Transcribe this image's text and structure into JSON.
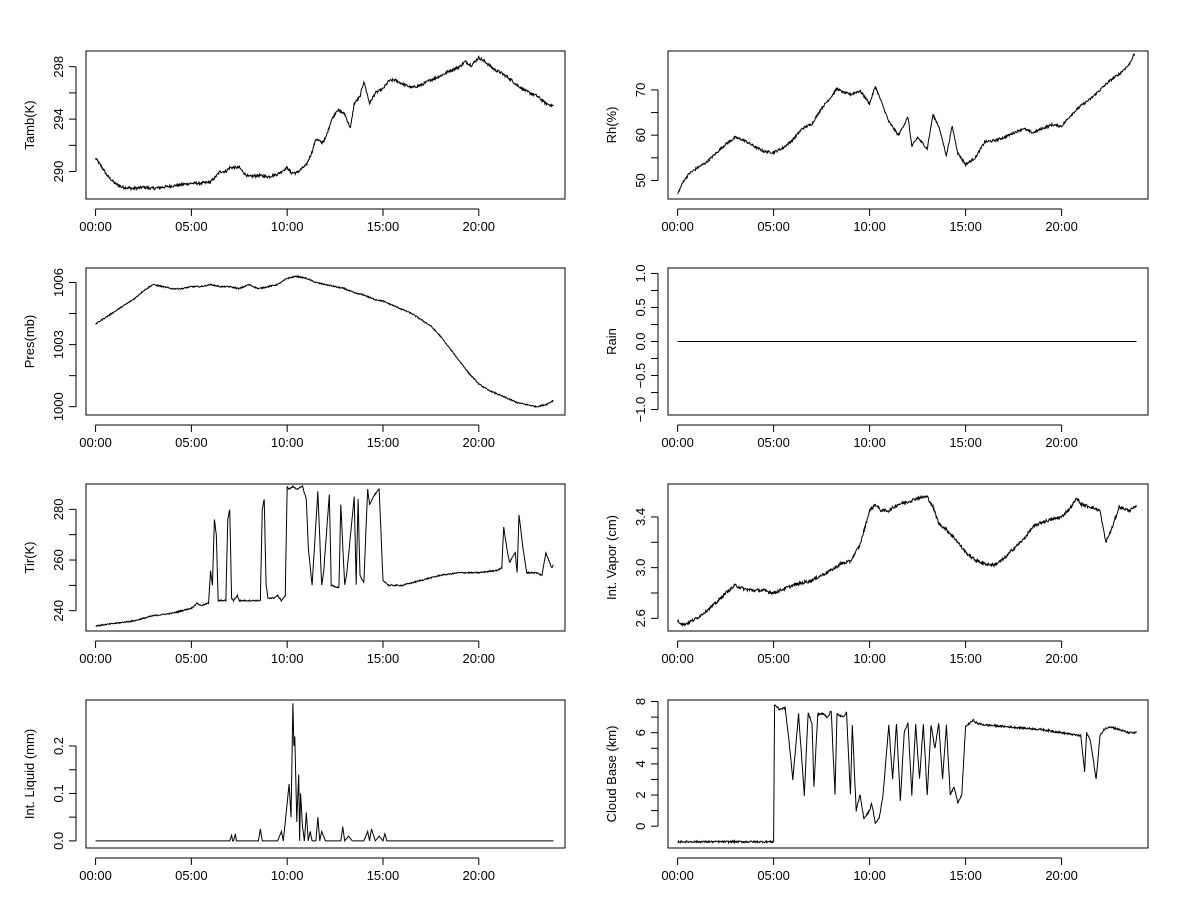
{
  "figure": {
    "background": "#ffffff",
    "line_color": "#000000",
    "x_tick_labels": [
      "00:00",
      "05:00",
      "10:00",
      "15:00",
      "20:00"
    ]
  },
  "chart_data": [
    {
      "type": "line",
      "ylabel": "Tamb(K)",
      "xlabel": "",
      "xlim": [
        -0.5,
        24.5
      ],
      "ylim": [
        287.9,
        299.2
      ],
      "yticks": [
        290,
        294,
        298
      ],
      "grid": false,
      "x": [
        0.0,
        0.3,
        0.6,
        1.0,
        1.4,
        2.0,
        2.5,
        3.0,
        3.5,
        4.0,
        4.5,
        5.0,
        5.5,
        6.0,
        6.2,
        6.5,
        6.8,
        7.0,
        7.5,
        7.8,
        8.0,
        8.5,
        9.0,
        9.5,
        10.0,
        10.2,
        10.5,
        11.0,
        11.3,
        11.5,
        11.8,
        12.0,
        12.3,
        12.6,
        13.0,
        13.3,
        13.5,
        13.8,
        14.0,
        14.3,
        14.6,
        15.0,
        15.3,
        15.6,
        16.0,
        16.5,
        17.0,
        17.5,
        18.0,
        18.5,
        19.0,
        19.3,
        19.6,
        20.0,
        20.4,
        20.8,
        21.2,
        21.6,
        22.0,
        22.5,
        23.0,
        23.5,
        23.9
      ],
      "y": [
        291.0,
        290.4,
        289.7,
        289.1,
        288.8,
        288.7,
        288.8,
        288.7,
        288.8,
        288.9,
        289.0,
        289.1,
        289.1,
        289.2,
        289.5,
        290.0,
        290.0,
        290.3,
        290.3,
        289.8,
        289.6,
        289.7,
        289.6,
        289.8,
        290.3,
        289.9,
        289.9,
        290.5,
        291.5,
        292.5,
        292.2,
        292.5,
        293.9,
        294.7,
        294.4,
        293.3,
        295.2,
        295.7,
        296.9,
        295.2,
        296.0,
        296.3,
        296.9,
        297.0,
        296.7,
        296.4,
        296.6,
        297.0,
        297.3,
        297.7,
        298.0,
        298.4,
        298.1,
        298.7,
        298.3,
        297.8,
        297.5,
        297.1,
        296.6,
        296.1,
        295.8,
        295.2,
        295.0
      ],
      "noise": 0.22
    },
    {
      "type": "line",
      "ylabel": "Rh(%)",
      "xlabel": "",
      "xlim": [
        -0.5,
        24.5
      ],
      "ylim": [
        45.9,
        78.6
      ],
      "yticks": [
        50,
        60,
        70
      ],
      "grid": false,
      "x": [
        0.0,
        0.3,
        0.6,
        1.0,
        1.5,
        2.0,
        2.5,
        3.0,
        3.5,
        4.0,
        4.5,
        5.0,
        5.5,
        6.0,
        6.5,
        7.0,
        7.5,
        8.0,
        8.3,
        8.6,
        9.0,
        9.5,
        10.0,
        10.3,
        10.6,
        11.0,
        11.5,
        12.0,
        12.2,
        12.5,
        13.0,
        13.3,
        13.6,
        14.0,
        14.3,
        14.6,
        15.0,
        15.5,
        16.0,
        16.5,
        17.0,
        17.5,
        18.0,
        18.5,
        19.0,
        19.5,
        20.0,
        20.5,
        21.0,
        21.5,
        22.0,
        22.5,
        23.0,
        23.5,
        23.8
      ],
      "y": [
        47.0,
        49.8,
        51.5,
        52.7,
        54.0,
        56.0,
        58.0,
        59.5,
        58.8,
        57.5,
        56.4,
        56.2,
        57.2,
        59.0,
        61.5,
        62.5,
        66.0,
        68.5,
        70.3,
        69.5,
        69.0,
        69.8,
        67.0,
        70.8,
        67.5,
        63.0,
        60.0,
        64.0,
        57.5,
        59.5,
        57.0,
        64.5,
        62.0,
        55.5,
        62.0,
        56.0,
        53.5,
        55.0,
        58.5,
        58.8,
        59.5,
        60.5,
        61.5,
        60.5,
        61.5,
        62.3,
        62.0,
        64.5,
        66.5,
        68.0,
        70.0,
        72.0,
        73.5,
        75.5,
        78.0
      ],
      "noise": 0.55
    },
    {
      "type": "line",
      "ylabel": "Pres(mb)",
      "xlabel": "",
      "xlim": [
        -0.5,
        24.5
      ],
      "ylim": [
        999.6,
        1006.7
      ],
      "yticks": [
        1000,
        1003,
        1006
      ],
      "grid": false,
      "x": [
        0.0,
        0.5,
        1.0,
        1.5,
        2.0,
        2.5,
        3.0,
        3.5,
        4.0,
        4.5,
        5.0,
        5.5,
        6.0,
        6.5,
        7.0,
        7.5,
        8.0,
        8.5,
        9.0,
        9.5,
        10.0,
        10.5,
        11.0,
        11.5,
        12.0,
        12.5,
        13.0,
        13.5,
        14.0,
        14.5,
        15.0,
        15.5,
        16.0,
        16.5,
        17.0,
        17.5,
        18.0,
        18.5,
        19.0,
        19.5,
        20.0,
        20.5,
        21.0,
        21.5,
        22.0,
        22.5,
        23.0,
        23.5,
        23.9
      ],
      "y": [
        1004.0,
        1004.3,
        1004.6,
        1004.9,
        1005.2,
        1005.6,
        1005.9,
        1005.8,
        1005.7,
        1005.7,
        1005.8,
        1005.8,
        1005.9,
        1005.8,
        1005.8,
        1005.7,
        1005.9,
        1005.7,
        1005.8,
        1005.9,
        1006.2,
        1006.3,
        1006.2,
        1006.0,
        1005.9,
        1005.8,
        1005.7,
        1005.5,
        1005.4,
        1005.2,
        1005.1,
        1004.9,
        1004.7,
        1004.5,
        1004.2,
        1003.9,
        1003.4,
        1002.8,
        1002.2,
        1001.6,
        1001.1,
        1000.8,
        1000.6,
        1000.4,
        1000.2,
        1000.1,
        1000.0,
        1000.1,
        1000.3
      ],
      "noise": 0.06
    },
    {
      "type": "line",
      "ylabel": "Rain",
      "xlabel": "",
      "xlim": [
        -0.5,
        24.5
      ],
      "ylim": [
        -1.08,
        1.08
      ],
      "yticks": [
        -1.0,
        -0.5,
        0.0,
        0.5,
        1.0
      ],
      "grid": false,
      "x": [
        0.0,
        23.9
      ],
      "y": [
        0.0,
        0.0
      ],
      "noise": 0
    },
    {
      "type": "line",
      "ylabel": "Tir(K)",
      "xlabel": "",
      "xlim": [
        -0.5,
        24.5
      ],
      "ylim": [
        232.0,
        290.0
      ],
      "yticks": [
        240,
        260,
        280
      ],
      "grid": false,
      "x": [
        0.0,
        1.0,
        2.0,
        3.0,
        4.0,
        5.0,
        5.3,
        5.5,
        5.9,
        6.0,
        6.1,
        6.2,
        6.3,
        6.4,
        6.5,
        6.8,
        6.9,
        7.0,
        7.1,
        7.2,
        7.3,
        7.4,
        7.5,
        7.6,
        8.0,
        8.6,
        8.7,
        8.8,
        8.9,
        9.0,
        9.3,
        9.5,
        9.7,
        9.9,
        10.0,
        10.1,
        10.3,
        10.5,
        10.8,
        11.0,
        11.1,
        11.3,
        11.6,
        11.8,
        11.9,
        12.2,
        12.3,
        12.7,
        12.8,
        13.0,
        13.1,
        13.5,
        13.6,
        13.7,
        13.8,
        14.0,
        14.2,
        14.3,
        14.5,
        14.8,
        15.0,
        15.3,
        15.5,
        16.0,
        17.0,
        18.0,
        19.0,
        20.0,
        21.0,
        21.2,
        21.3,
        21.5,
        21.6,
        21.9,
        22.0,
        22.1,
        22.3,
        22.5,
        23.0,
        23.3,
        23.5,
        23.8,
        23.9
      ],
      "y": [
        234,
        235,
        236,
        238,
        239,
        241,
        243,
        242,
        243,
        256,
        250,
        276,
        270,
        244,
        244,
        244,
        276,
        280,
        245,
        244,
        245,
        246,
        244,
        244,
        244,
        244,
        280,
        284,
        250,
        245,
        245,
        246,
        244,
        246,
        289,
        288,
        289,
        288,
        289,
        284,
        265,
        250,
        287,
        250,
        255,
        286,
        250,
        249,
        282,
        250,
        254,
        285,
        250,
        284,
        254,
        251,
        288,
        282,
        285,
        288,
        252,
        250,
        250,
        250,
        252,
        254,
        255,
        255,
        256,
        257,
        273,
        263,
        259,
        263,
        255,
        278,
        265,
        255,
        255,
        254,
        263,
        257,
        258
      ],
      "noise": 0.5
    },
    {
      "type": "line",
      "ylabel": "Int. Vapor (cm)",
      "xlabel": "",
      "xlim": [
        -0.5,
        24.5
      ],
      "ylim": [
        2.5,
        3.66
      ],
      "yticks": [
        2.6,
        3.0,
        3.4
      ],
      "grid": false,
      "x": [
        0.0,
        0.3,
        0.6,
        1.0,
        1.5,
        2.0,
        2.5,
        3.0,
        3.5,
        4.0,
        4.5,
        5.0,
        5.5,
        6.0,
        6.5,
        7.0,
        7.5,
        8.0,
        8.5,
        9.0,
        9.5,
        10.0,
        10.3,
        10.6,
        11.0,
        11.5,
        12.0,
        12.5,
        13.0,
        13.3,
        13.6,
        14.0,
        14.5,
        15.0,
        15.5,
        16.0,
        16.5,
        17.0,
        17.5,
        18.0,
        18.5,
        19.0,
        19.5,
        20.0,
        20.5,
        20.8,
        21.0,
        21.5,
        22.0,
        22.3,
        22.6,
        23.0,
        23.5,
        23.9
      ],
      "y": [
        2.58,
        2.55,
        2.57,
        2.6,
        2.66,
        2.72,
        2.8,
        2.86,
        2.83,
        2.82,
        2.82,
        2.8,
        2.83,
        2.86,
        2.88,
        2.9,
        2.94,
        2.98,
        3.03,
        3.05,
        3.18,
        3.45,
        3.5,
        3.45,
        3.45,
        3.5,
        3.52,
        3.55,
        3.56,
        3.48,
        3.35,
        3.3,
        3.22,
        3.12,
        3.06,
        3.03,
        3.02,
        3.07,
        3.15,
        3.22,
        3.32,
        3.36,
        3.38,
        3.4,
        3.48,
        3.55,
        3.5,
        3.48,
        3.45,
        3.2,
        3.3,
        3.48,
        3.45,
        3.48
      ],
      "noise": 0.025
    },
    {
      "type": "line",
      "ylabel": "Int. Liquid (mm)",
      "xlabel": "",
      "xlim": [
        -0.5,
        24.5
      ],
      "ylim": [
        -0.015,
        0.297
      ],
      "yticks": [
        0.0,
        0.1,
        0.2
      ],
      "grid": false,
      "x": [
        0.0,
        7.0,
        7.1,
        7.15,
        7.2,
        7.3,
        7.35,
        7.4,
        7.5,
        8.5,
        8.6,
        8.7,
        9.5,
        9.7,
        9.8,
        10.0,
        10.1,
        10.2,
        10.3,
        10.35,
        10.4,
        10.5,
        10.6,
        10.65,
        10.7,
        10.8,
        10.9,
        11.0,
        11.1,
        11.2,
        11.3,
        11.5,
        11.6,
        11.7,
        11.8,
        12.0,
        12.5,
        12.8,
        12.9,
        13.0,
        13.2,
        13.4,
        13.6,
        14.0,
        14.2,
        14.3,
        14.4,
        14.6,
        14.8,
        15.0,
        15.1,
        15.2,
        15.3,
        23.9
      ],
      "y": [
        0.0,
        0.0,
        0.012,
        0.0,
        0.0,
        0.015,
        0.0,
        0.0,
        0.0,
        0.0,
        0.025,
        0.0,
        0.0,
        0.02,
        0.0,
        0.08,
        0.12,
        0.05,
        0.29,
        0.2,
        0.22,
        0.04,
        0.14,
        0.0,
        0.1,
        0.03,
        0.0,
        0.06,
        0.0,
        0.02,
        0.0,
        0.0,
        0.05,
        0.0,
        0.02,
        0.0,
        0.0,
        0.0,
        0.03,
        0.0,
        0.01,
        0.0,
        0.0,
        0.0,
        0.02,
        0.0,
        0.025,
        0.0,
        0.01,
        0.0,
        0.015,
        0.0,
        0.0,
        0.0
      ],
      "noise": 0
    },
    {
      "type": "line",
      "ylabel": "Cloud Base (km)",
      "xlabel": "",
      "xlim": [
        -0.5,
        24.5
      ],
      "ylim": [
        -1.4,
        8.1
      ],
      "yticks": [
        0,
        2,
        4,
        6,
        8
      ],
      "grid": false,
      "x": [
        0.0,
        5.0,
        5.05,
        5.3,
        5.6,
        5.8,
        6.0,
        6.3,
        6.6,
        6.8,
        7.0,
        7.1,
        7.3,
        7.6,
        7.8,
        8.0,
        8.2,
        8.3,
        8.6,
        8.8,
        9.0,
        9.1,
        9.3,
        9.5,
        9.7,
        10.0,
        10.1,
        10.3,
        10.5,
        10.7,
        11.0,
        11.2,
        11.4,
        11.6,
        11.8,
        12.0,
        12.2,
        12.4,
        12.6,
        12.8,
        13.0,
        13.2,
        13.4,
        13.6,
        13.8,
        14.0,
        14.2,
        14.4,
        14.6,
        14.8,
        15.0,
        15.2,
        15.4,
        15.6,
        16.0,
        17.0,
        18.0,
        19.0,
        20.0,
        21.0,
        21.2,
        21.3,
        21.5,
        21.8,
        22.0,
        22.2,
        22.5,
        23.0,
        23.5,
        23.9
      ],
      "y": [
        -1.0,
        -1.0,
        7.8,
        7.5,
        7.6,
        5.5,
        3.0,
        7.2,
        2.0,
        7.3,
        6.6,
        2.5,
        7.2,
        7.2,
        7.0,
        7.4,
        2.0,
        7.2,
        7.0,
        7.3,
        2.0,
        6.5,
        1.0,
        2.0,
        0.5,
        1.0,
        1.5,
        0.2,
        0.5,
        2.0,
        6.5,
        3.0,
        6.6,
        1.6,
        6.0,
        6.6,
        2.0,
        6.5,
        3.0,
        6.6,
        2.0,
        6.5,
        5.0,
        6.6,
        3.0,
        6.5,
        2.0,
        2.5,
        1.5,
        2.0,
        6.4,
        6.6,
        6.8,
        6.6,
        6.5,
        6.4,
        6.3,
        6.2,
        6.0,
        5.8,
        3.5,
        6.0,
        5.5,
        3.0,
        5.8,
        6.2,
        6.4,
        6.2,
        6.0,
        6.0
      ],
      "noise": 0.12
    }
  ]
}
